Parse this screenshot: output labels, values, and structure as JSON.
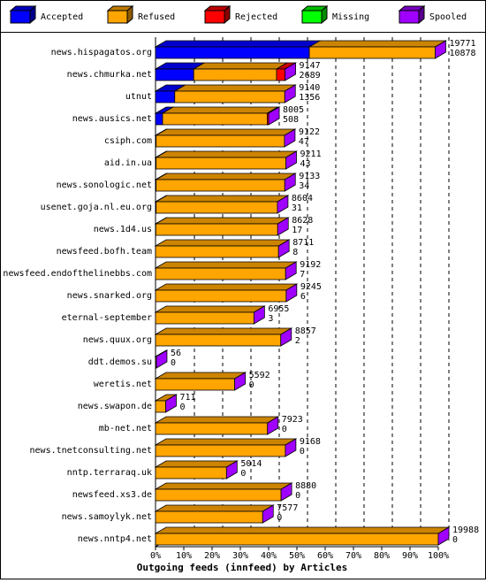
{
  "chart_data": {
    "type": "bar",
    "title": "Outgoing feeds (innfeed) by Articles",
    "categories": [
      "news.hispagatos.org",
      "news.chmurka.net",
      "utnut",
      "news.ausics.net",
      "csiph.com",
      "aid.in.ua",
      "news.sonologic.net",
      "usenet.goja.nl.eu.org",
      "news.1d4.us",
      "newsfeed.bofh.team",
      "newsfeed.endofthelinebbs.com",
      "news.snarked.org",
      "eternal-september",
      "news.quux.org",
      "ddt.demos.su",
      "weretis.net",
      "news.swapon.de",
      "mb-net.net",
      "news.tnetconsulting.net",
      "nntp.terraraq.uk",
      "newsfeed.xs3.de",
      "news.samoylyk.net",
      "news.nntp4.net"
    ],
    "series": [
      {
        "name": "Accepted",
        "color": "#0000ff",
        "values": [
          54.4,
          13.5,
          6.8,
          2.5,
          0.2,
          0.2,
          0.2,
          0.2,
          0.1,
          0,
          0,
          0,
          0,
          0,
          0,
          0,
          0,
          0,
          0,
          0,
          0,
          0,
          0
        ]
      },
      {
        "name": "Refused",
        "color": "#ffa500",
        "values": [
          44.5,
          29.3,
          38.9,
          37.0,
          45.4,
          45.9,
          45.5,
          42.9,
          43.1,
          43.5,
          46.0,
          46.2,
          34.8,
          44.3,
          0.3,
          28.0,
          3.6,
          39.6,
          45.9,
          25.1,
          44.4,
          37.9,
          100
        ]
      },
      {
        "name": "Rejected",
        "color": "#ff0000",
        "values": [
          0,
          3.0,
          0,
          0.5,
          0,
          0,
          0,
          0,
          0,
          0,
          0,
          0,
          0,
          0,
          0,
          0,
          0,
          0,
          0,
          0,
          0,
          0,
          0
        ]
      },
      {
        "name": "Missing",
        "color": "#00ff00",
        "values": [
          0,
          0,
          0,
          0,
          0,
          0,
          0,
          0,
          0,
          0,
          0,
          0,
          0,
          0,
          0,
          0,
          0,
          0,
          0,
          0,
          0,
          0,
          0
        ]
      },
      {
        "name": "Spooled",
        "color": "#a000ff",
        "values": [
          0,
          0,
          0,
          0,
          0,
          0,
          0,
          0,
          0,
          0,
          0,
          0,
          0,
          0,
          0,
          0,
          0,
          0,
          0,
          0,
          0,
          0,
          0
        ]
      }
    ],
    "totals": [
      19771,
      9147,
      9140,
      8005,
      9122,
      9211,
      9133,
      8604,
      8628,
      8711,
      9192,
      9245,
      6955,
      8857,
      56,
      5592,
      711,
      7923,
      9168,
      5014,
      8880,
      7577,
      19988
    ],
    "accepted": [
      10878,
      2689,
      1356,
      508,
      47,
      43,
      34,
      31,
      17,
      8,
      7,
      6,
      3,
      2,
      0,
      0,
      0,
      0,
      0,
      0,
      0,
      0,
      0
    ],
    "xlim": [
      0,
      100
    ],
    "xticks": [
      {
        "value": 0,
        "label": "0%"
      },
      {
        "value": 10,
        "label": "10%"
      },
      {
        "value": 20,
        "label": "20%"
      },
      {
        "value": 30,
        "label": "30%"
      },
      {
        "value": 40,
        "label": "40%"
      },
      {
        "value": 50,
        "label": "50%"
      },
      {
        "value": 60,
        "label": "60%"
      },
      {
        "value": 70,
        "label": "70%"
      },
      {
        "value": 80,
        "label": "80%"
      },
      {
        "value": 90,
        "label": "90%"
      },
      {
        "value": 100,
        "label": "100%"
      }
    ],
    "grid": true
  }
}
